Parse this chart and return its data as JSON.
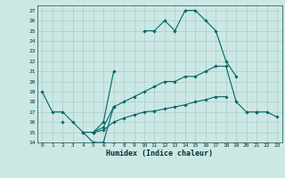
{
  "xlabel": "Humidex (Indice chaleur)",
  "x_values": [
    0,
    1,
    2,
    3,
    4,
    5,
    6,
    7,
    8,
    9,
    10,
    11,
    12,
    13,
    14,
    15,
    16,
    17,
    18,
    19,
    20,
    21,
    22,
    23
  ],
  "line1": [
    19,
    17,
    17,
    16,
    15,
    15,
    16,
    21,
    null,
    null,
    25,
    25,
    26,
    25,
    27,
    27,
    26,
    25,
    22,
    20.5,
    null,
    null,
    null,
    null
  ],
  "line2": [
    null,
    null,
    16,
    null,
    15,
    14,
    14,
    17.5,
    null,
    null,
    null,
    null,
    null,
    null,
    null,
    null,
    null,
    null,
    null,
    null,
    null,
    17,
    17,
    16.5
  ],
  "line3": [
    null,
    null,
    null,
    null,
    null,
    15,
    15.5,
    17.5,
    18,
    18.5,
    19,
    19.5,
    20,
    20,
    20.5,
    20.5,
    21,
    21.5,
    21.5,
    18,
    17,
    17,
    null,
    null
  ],
  "line4": [
    null,
    null,
    null,
    null,
    null,
    15,
    15.2,
    16,
    16.4,
    16.7,
    17,
    17.1,
    17.3,
    17.5,
    17.7,
    18,
    18.2,
    18.5,
    18.5,
    null,
    null,
    null,
    null,
    null
  ],
  "line_color": "#006666",
  "bg_color": "#cce8e4",
  "grid_color": "#aaccca",
  "xlim": [
    -0.5,
    23.5
  ],
  "ylim": [
    14,
    27.5
  ],
  "yticks": [
    14,
    15,
    16,
    17,
    18,
    19,
    20,
    21,
    22,
    23,
    24,
    25,
    26,
    27
  ],
  "xticks": [
    0,
    1,
    2,
    3,
    4,
    5,
    6,
    7,
    8,
    9,
    10,
    11,
    12,
    13,
    14,
    15,
    16,
    17,
    18,
    19,
    20,
    21,
    22,
    23
  ]
}
